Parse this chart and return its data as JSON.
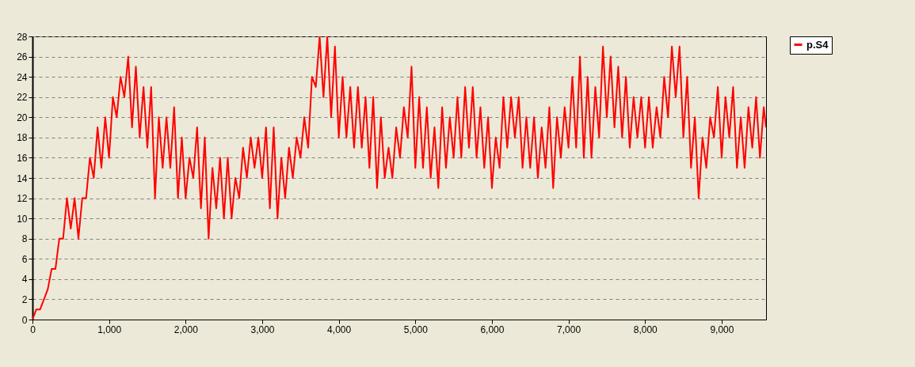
{
  "chart_data": {
    "type": "line",
    "xlim": [
      0,
      9580
    ],
    "ylim": [
      0,
      28
    ],
    "xticks": [
      0,
      {
        "value": 1000,
        "label": "1,000"
      },
      {
        "value": 2000,
        "label": "2,000"
      },
      {
        "value": 3000,
        "label": "3,000"
      },
      {
        "value": 4000,
        "label": "4,000"
      },
      {
        "value": 5000,
        "label": "5,000"
      },
      {
        "value": 6000,
        "label": "6,000"
      },
      {
        "value": 7000,
        "label": "7,000"
      },
      {
        "value": 8000,
        "label": "8,000"
      },
      {
        "value": 9000,
        "label": "9,000"
      }
    ],
    "yticks": [
      0,
      2,
      4,
      6,
      8,
      10,
      12,
      14,
      16,
      18,
      20,
      22,
      24,
      26,
      28
    ],
    "grid": "y",
    "legend": "top right",
    "line_style": "solid",
    "series": [
      {
        "name": "p.S4",
        "color": "#ff0000",
        "x": [
          0,
          50,
          100,
          150,
          200,
          250,
          300,
          350,
          400,
          450,
          500,
          550,
          600,
          650,
          700,
          750,
          800,
          850,
          900,
          950,
          1000,
          1050,
          1100,
          1150,
          1200,
          1250,
          1300,
          1350,
          1400,
          1450,
          1500,
          1550,
          1600,
          1650,
          1700,
          1750,
          1800,
          1850,
          1900,
          1950,
          2000,
          2050,
          2100,
          2150,
          2200,
          2250,
          2300,
          2350,
          2400,
          2450,
          2500,
          2550,
          2600,
          2650,
          2700,
          2750,
          2800,
          2850,
          2900,
          2950,
          3000,
          3050,
          3100,
          3150,
          3200,
          3250,
          3300,
          3350,
          3400,
          3450,
          3500,
          3550,
          3600,
          3650,
          3700,
          3750,
          3800,
          3850,
          3900,
          3950,
          4000,
          4050,
          4100,
          4150,
          4200,
          4250,
          4300,
          4350,
          4400,
          4450,
          4500,
          4550,
          4600,
          4650,
          4700,
          4750,
          4800,
          4850,
          4900,
          4950,
          5000,
          5050,
          5100,
          5150,
          5200,
          5250,
          5300,
          5350,
          5400,
          5450,
          5500,
          5550,
          5600,
          5650,
          5700,
          5750,
          5800,
          5850,
          5900,
          5950,
          6000,
          6050,
          6100,
          6150,
          6200,
          6250,
          6300,
          6350,
          6400,
          6450,
          6500,
          6550,
          6600,
          6650,
          6700,
          6750,
          6800,
          6850,
          6900,
          6950,
          7000,
          7050,
          7100,
          7150,
          7200,
          7250,
          7300,
          7350,
          7400,
          7450,
          7500,
          7550,
          7600,
          7650,
          7700,
          7750,
          7800,
          7850,
          7900,
          7950,
          8000,
          8050,
          8100,
          8150,
          8200,
          8250,
          8300,
          8350,
          8400,
          8450,
          8500,
          8550,
          8600,
          8650,
          8700,
          8750,
          8800,
          8850,
          8900,
          8950,
          9000,
          9050,
          9100,
          9150,
          9200,
          9250,
          9300,
          9350,
          9400,
          9450,
          9500,
          9550,
          9580
        ],
        "values": [
          0,
          1,
          1,
          2,
          3,
          5,
          5,
          8,
          8,
          12,
          9,
          12,
          8,
          12,
          12,
          16,
          14,
          19,
          15,
          20,
          16,
          22,
          20,
          24,
          22,
          26,
          19,
          25,
          18,
          23,
          17,
          23,
          12,
          20,
          15,
          20,
          15,
          21,
          12,
          18,
          12,
          16,
          14,
          19,
          11,
          18,
          8,
          15,
          11,
          16,
          10,
          16,
          10,
          14,
          12,
          17,
          14,
          18,
          15,
          18,
          14,
          19,
          11,
          19,
          10,
          16,
          12,
          17,
          14,
          18,
          16,
          20,
          17,
          24,
          23,
          28,
          22,
          28,
          20,
          27,
          18,
          24,
          18,
          23,
          17,
          23,
          17,
          22,
          15,
          22,
          13,
          20,
          14,
          17,
          14,
          19,
          16,
          21,
          18,
          25,
          15,
          22,
          15,
          21,
          14,
          19,
          13,
          21,
          15,
          20,
          16,
          22,
          16,
          23,
          17,
          23,
          16,
          21,
          15,
          20,
          13,
          18,
          15,
          22,
          17,
          22,
          18,
          22,
          15,
          20,
          15,
          20,
          14,
          19,
          15,
          21,
          13,
          20,
          16,
          21,
          17,
          24,
          17,
          26,
          16,
          24,
          16,
          23,
          18,
          27,
          20,
          26,
          19,
          25,
          18,
          24,
          17,
          22,
          18,
          22,
          17,
          22,
          17,
          21,
          18,
          24,
          20,
          27,
          22,
          27,
          18,
          24,
          15,
          20,
          12,
          18,
          15,
          20,
          18,
          23,
          16,
          22,
          18,
          23,
          15,
          20,
          15,
          21,
          17,
          22,
          16,
          21,
          19
        ]
      }
    ]
  }
}
